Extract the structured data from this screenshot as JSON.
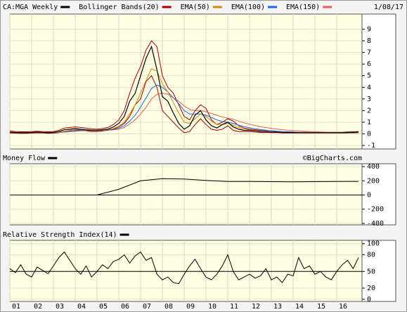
{
  "chart_data": [
    {
      "type": "line",
      "title": "CA:MGA Weekly",
      "date": "1/08/17",
      "x": [
        2001,
        2001.25,
        2001.5,
        2001.75,
        2002,
        2002.25,
        2002.5,
        2002.75,
        2003,
        2003.25,
        2003.5,
        2003.75,
        2004,
        2004.25,
        2004.5,
        2004.75,
        2005,
        2005.25,
        2005.5,
        2005.75,
        2006,
        2006.25,
        2006.5,
        2006.75,
        2007,
        2007.25,
        2007.5,
        2007.75,
        2008,
        2008.25,
        2008.5,
        2008.75,
        2009,
        2009.25,
        2009.5,
        2009.75,
        2010,
        2010.25,
        2010.5,
        2010.75,
        2011,
        2011.25,
        2011.5,
        2011.75,
        2012,
        2012.25,
        2012.5,
        2012.75,
        2013,
        2013.25,
        2013.5,
        2013.75,
        2014,
        2014.25,
        2014.5,
        2014.75,
        2015,
        2015.25,
        2015.5,
        2015.75,
        2016,
        2016.25,
        2016.5,
        2016.75,
        2017
      ],
      "series": [
        {
          "name": "CA:MGA Weekly",
          "color": "#000000",
          "values": [
            0.15,
            0.12,
            0.1,
            0.1,
            0.12,
            0.15,
            0.12,
            0.1,
            0.12,
            0.2,
            0.35,
            0.4,
            0.45,
            0.4,
            0.35,
            0.3,
            0.3,
            0.35,
            0.4,
            0.6,
            0.9,
            1.5,
            2.8,
            3.5,
            5.0,
            6.5,
            7.5,
            5.5,
            3.2,
            2.8,
            1.8,
            0.9,
            0.4,
            0.7,
            1.6,
            2.0,
            1.2,
            0.7,
            0.5,
            0.8,
            1.0,
            0.6,
            0.4,
            0.3,
            0.3,
            0.25,
            0.2,
            0.2,
            0.15,
            0.15,
            0.12,
            0.12,
            0.12,
            0.1,
            0.1,
            0.1,
            0.1,
            0.1,
            0.1,
            0.1,
            0.1,
            0.1,
            0.12,
            0.12,
            0.15
          ]
        },
        {
          "name": "EMA(50)",
          "color": "#c89000",
          "values": [
            0.13,
            0.12,
            0.11,
            0.1,
            0.11,
            0.12,
            0.12,
            0.11,
            0.11,
            0.15,
            0.22,
            0.3,
            0.36,
            0.38,
            0.37,
            0.34,
            0.32,
            0.33,
            0.36,
            0.45,
            0.65,
            1.0,
            1.7,
            2.5,
            3.5,
            4.6,
            5.6,
            5.4,
            4.3,
            3.6,
            2.7,
            1.8,
            1.0,
            0.9,
            1.3,
            1.7,
            1.5,
            1.1,
            0.8,
            0.8,
            0.9,
            0.75,
            0.55,
            0.42,
            0.35,
            0.28,
            0.23,
            0.2,
            0.17,
            0.15,
            0.13,
            0.12,
            0.12,
            0.11,
            0.1,
            0.1,
            0.1,
            0.1,
            0.1,
            0.1,
            0.1,
            0.1,
            0.11,
            0.12,
            0.13
          ]
        },
        {
          "name": "EMA(100)",
          "color": "#1e64f0",
          "values": [
            0.12,
            0.12,
            0.11,
            0.11,
            0.11,
            0.11,
            0.12,
            0.11,
            0.11,
            0.13,
            0.17,
            0.22,
            0.27,
            0.3,
            0.32,
            0.32,
            0.32,
            0.32,
            0.34,
            0.38,
            0.48,
            0.7,
            1.1,
            1.6,
            2.3,
            3.1,
            3.9,
            4.2,
            4.0,
            3.6,
            3.1,
            2.6,
            2.0,
            1.7,
            1.7,
            1.7,
            1.6,
            1.4,
            1.2,
            1.05,
            1.0,
            0.9,
            0.75,
            0.62,
            0.52,
            0.44,
            0.37,
            0.32,
            0.27,
            0.23,
            0.2,
            0.18,
            0.16,
            0.14,
            0.13,
            0.12,
            0.11,
            0.11,
            0.1,
            0.1,
            0.1,
            0.1,
            0.1,
            0.11,
            0.12
          ]
        },
        {
          "name": "EMA(150)",
          "color": "#e06060",
          "values": [
            0.12,
            0.12,
            0.12,
            0.11,
            0.11,
            0.11,
            0.11,
            0.11,
            0.11,
            0.12,
            0.15,
            0.18,
            0.22,
            0.25,
            0.27,
            0.28,
            0.29,
            0.3,
            0.31,
            0.34,
            0.4,
            0.55,
            0.85,
            1.2,
            1.7,
            2.3,
            3.0,
            3.4,
            3.5,
            3.4,
            3.1,
            2.8,
            2.4,
            2.1,
            2.0,
            2.0,
            1.9,
            1.75,
            1.6,
            1.45,
            1.35,
            1.25,
            1.1,
            0.95,
            0.83,
            0.72,
            0.62,
            0.54,
            0.47,
            0.41,
            0.36,
            0.32,
            0.28,
            0.25,
            0.22,
            0.2,
            0.18,
            0.16,
            0.15,
            0.14,
            0.13,
            0.12,
            0.12,
            0.12,
            0.12
          ]
        }
      ],
      "bands": {
        "name": "Bollinger Bands(20)",
        "color": "#a00000",
        "upper": [
          0.25,
          0.2,
          0.18,
          0.18,
          0.2,
          0.22,
          0.2,
          0.18,
          0.2,
          0.3,
          0.5,
          0.55,
          0.6,
          0.55,
          0.5,
          0.42,
          0.4,
          0.45,
          0.55,
          0.8,
          1.2,
          2.0,
          3.5,
          4.8,
          5.8,
          7.2,
          8.0,
          7.5,
          5.0,
          4.0,
          3.5,
          2.5,
          1.5,
          1.2,
          2.0,
          2.5,
          2.2,
          1.2,
          0.8,
          1.0,
          1.3,
          1.1,
          0.7,
          0.5,
          0.4,
          0.35,
          0.3,
          0.28,
          0.25,
          0.2,
          0.18,
          0.16,
          0.15,
          0.14,
          0.13,
          0.13,
          0.13,
          0.13,
          0.13,
          0.13,
          0.13,
          0.14,
          0.16,
          0.18,
          0.2
        ],
        "lower": [
          0.08,
          0.06,
          0.05,
          0.05,
          0.06,
          0.08,
          0.07,
          0.05,
          0.06,
          0.1,
          0.2,
          0.28,
          0.35,
          0.3,
          0.25,
          0.2,
          0.2,
          0.25,
          0.3,
          0.4,
          0.6,
          0.9,
          1.5,
          2.5,
          3.0,
          4.5,
          5.0,
          4.0,
          2.0,
          1.5,
          1.0,
          0.5,
          0.1,
          0.2,
          0.8,
          1.3,
          0.8,
          0.4,
          0.3,
          0.4,
          0.7,
          0.3,
          0.2,
          0.2,
          0.2,
          0.15,
          0.12,
          0.12,
          0.1,
          0.1,
          0.08,
          0.08,
          0.07,
          0.07,
          0.07,
          0.07,
          0.07,
          0.07,
          0.07,
          0.07,
          0.07,
          0.07,
          0.08,
          0.09,
          0.1
        ]
      },
      "xlim": [
        2001,
        2017.16
      ],
      "ylim": [
        -1.3,
        10.3
      ],
      "yticks": [
        9,
        8,
        7,
        6,
        5,
        4,
        3,
        2,
        1,
        0,
        -1
      ],
      "grid": true
    },
    {
      "type": "line",
      "title": "Money Flow",
      "watermark": "©BigCharts.com",
      "color": "#000000",
      "x": [
        2001,
        2002,
        2003,
        2004,
        2005,
        2006,
        2007,
        2008,
        2009,
        2010,
        2011,
        2012,
        2013,
        2014,
        2015,
        2016,
        2017
      ],
      "values": [
        null,
        null,
        null,
        null,
        0,
        80,
        200,
        230,
        225,
        205,
        190,
        190,
        188,
        185,
        188,
        190,
        192
      ],
      "baseline": 0,
      "xlim": [
        2001,
        2017.16
      ],
      "ylim": [
        -420,
        440
      ],
      "yticks": [
        400,
        200,
        0,
        -200,
        -400
      ],
      "grid": true
    },
    {
      "type": "line",
      "title": "Relative Strength Index(14)",
      "color": "#000000",
      "x": [
        2001,
        2001.25,
        2001.5,
        2001.75,
        2002,
        2002.25,
        2002.5,
        2002.75,
        2003,
        2003.25,
        2003.5,
        2003.75,
        2004,
        2004.25,
        2004.5,
        2004.75,
        2005,
        2005.25,
        2005.5,
        2005.75,
        2006,
        2006.25,
        2006.5,
        2006.75,
        2007,
        2007.25,
        2007.5,
        2007.75,
        2008,
        2008.25,
        2008.5,
        2008.75,
        2009,
        2009.25,
        2009.5,
        2009.75,
        2010,
        2010.25,
        2010.5,
        2010.75,
        2011,
        2011.25,
        2011.5,
        2011.75,
        2012,
        2012.25,
        2012.5,
        2012.75,
        2013,
        2013.25,
        2013.5,
        2013.75,
        2014,
        2014.25,
        2014.5,
        2014.75,
        2015,
        2015.25,
        2015.5,
        2015.75,
        2016,
        2016.25,
        2016.5,
        2016.75,
        2017
      ],
      "values": [
        55,
        48,
        62,
        45,
        40,
        58,
        52,
        46,
        60,
        75,
        85,
        70,
        55,
        45,
        60,
        40,
        50,
        62,
        55,
        68,
        72,
        80,
        65,
        78,
        85,
        70,
        75,
        45,
        35,
        40,
        30,
        28,
        45,
        60,
        72,
        55,
        40,
        35,
        45,
        60,
        80,
        50,
        35,
        40,
        45,
        38,
        42,
        55,
        35,
        40,
        30,
        45,
        42,
        75,
        55,
        60,
        45,
        50,
        40,
        35,
        50,
        62,
        70,
        55,
        75
      ],
      "baseline": 50,
      "xlim": [
        2001,
        2017.16
      ],
      "ylim": [
        -4,
        106
      ],
      "yticks": [
        100,
        80,
        50,
        20,
        0
      ],
      "grid": true,
      "xticks": [
        {
          "value": 2001,
          "label": "01"
        },
        {
          "value": 2002,
          "label": "02"
        },
        {
          "value": 2003,
          "label": "03"
        },
        {
          "value": 2004,
          "label": "04"
        },
        {
          "value": 2005,
          "label": "05"
        },
        {
          "value": 2006,
          "label": "06"
        },
        {
          "value": 2007,
          "label": "07"
        },
        {
          "value": 2008,
          "label": "08"
        },
        {
          "value": 2009,
          "label": "09"
        },
        {
          "value": 2010,
          "label": "10"
        },
        {
          "value": 2011,
          "label": "11"
        },
        {
          "value": 2012,
          "label": "12"
        },
        {
          "value": 2013,
          "label": "13"
        },
        {
          "value": 2014,
          "label": "14"
        },
        {
          "value": 2015,
          "label": "15"
        },
        {
          "value": 2016,
          "label": "16"
        }
      ]
    }
  ]
}
